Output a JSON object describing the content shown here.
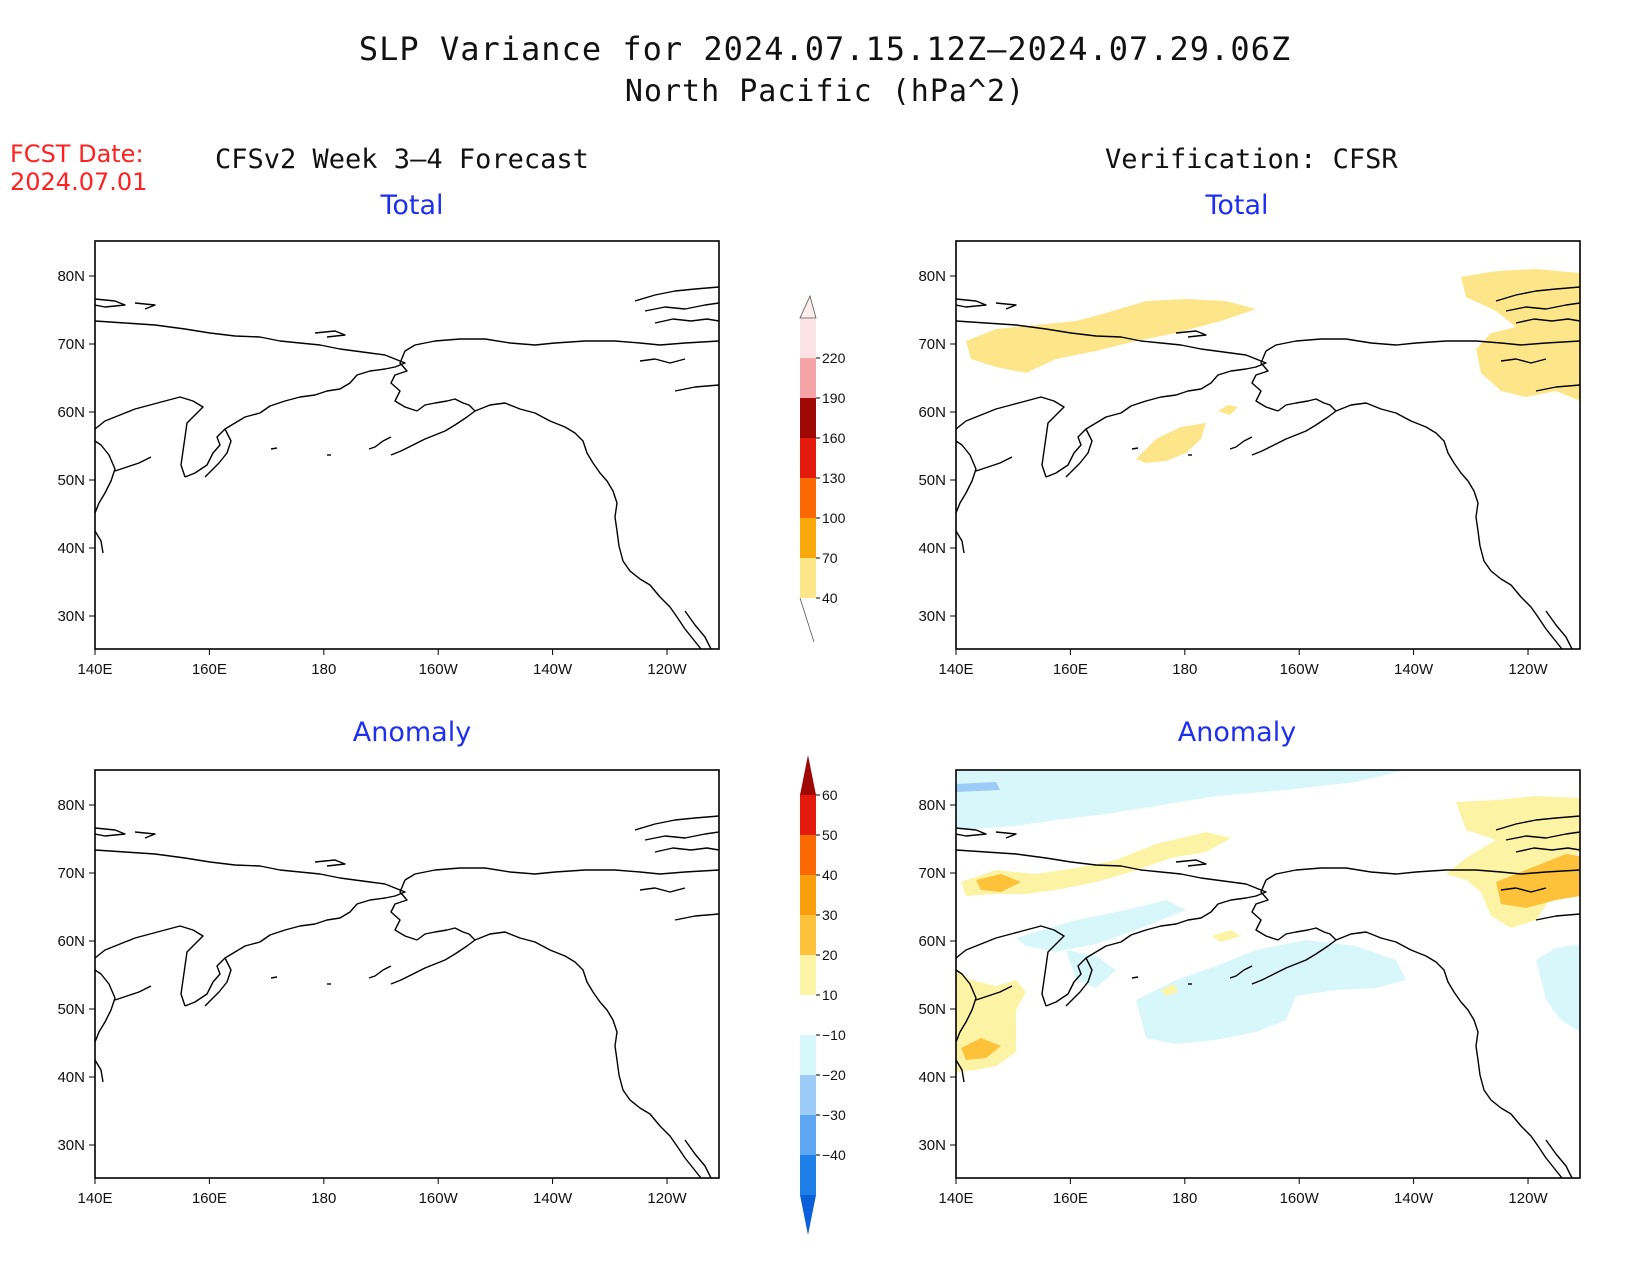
{
  "title": {
    "line1": "SLP Variance for 2024.07.15.12Z–2024.07.29.06Z",
    "line2": "North Pacific (hPa^2)"
  },
  "forecast_date": {
    "label": "FCST Date:",
    "value": "2024.07.01"
  },
  "columns": {
    "left": "CFSv2 Week 3–4 Forecast",
    "right": "Verification: CFSR"
  },
  "panels": [
    {
      "title": "Total"
    },
    {
      "title": "Total"
    },
    {
      "title": "Anomaly"
    },
    {
      "title": "Anomaly"
    }
  ],
  "axes": {
    "lon_labels": [
      "140E",
      "160E",
      "180",
      "160W",
      "140W",
      "120W"
    ],
    "lat_labels": [
      "80N",
      "70N",
      "60N",
      "50N",
      "40N",
      "30N"
    ]
  },
  "colorbar_total": {
    "labels": [
      "40",
      "70",
      "100",
      "130",
      "160",
      "190",
      "220"
    ],
    "colors": [
      "#fde68a",
      "#f9a80c",
      "#fb6a02",
      "#e31a0c",
      "#a00805",
      "#f4a3a6",
      "#fde4e4"
    ]
  },
  "colorbar_anomaly": {
    "labels": [
      "−40",
      "−30",
      "−20",
      "−10",
      "10",
      "20",
      "30",
      "40",
      "50",
      "60"
    ],
    "colors": [
      "#0b5fd8",
      "#1e7fe8",
      "#5fa6f2",
      "#9dcbf7",
      "#d8f7fb",
      "#ffffff",
      "#fdf3a4",
      "#fdc23a",
      "#f99f0b",
      "#fb6a02",
      "#e31a0c",
      "#a00805"
    ]
  }
}
